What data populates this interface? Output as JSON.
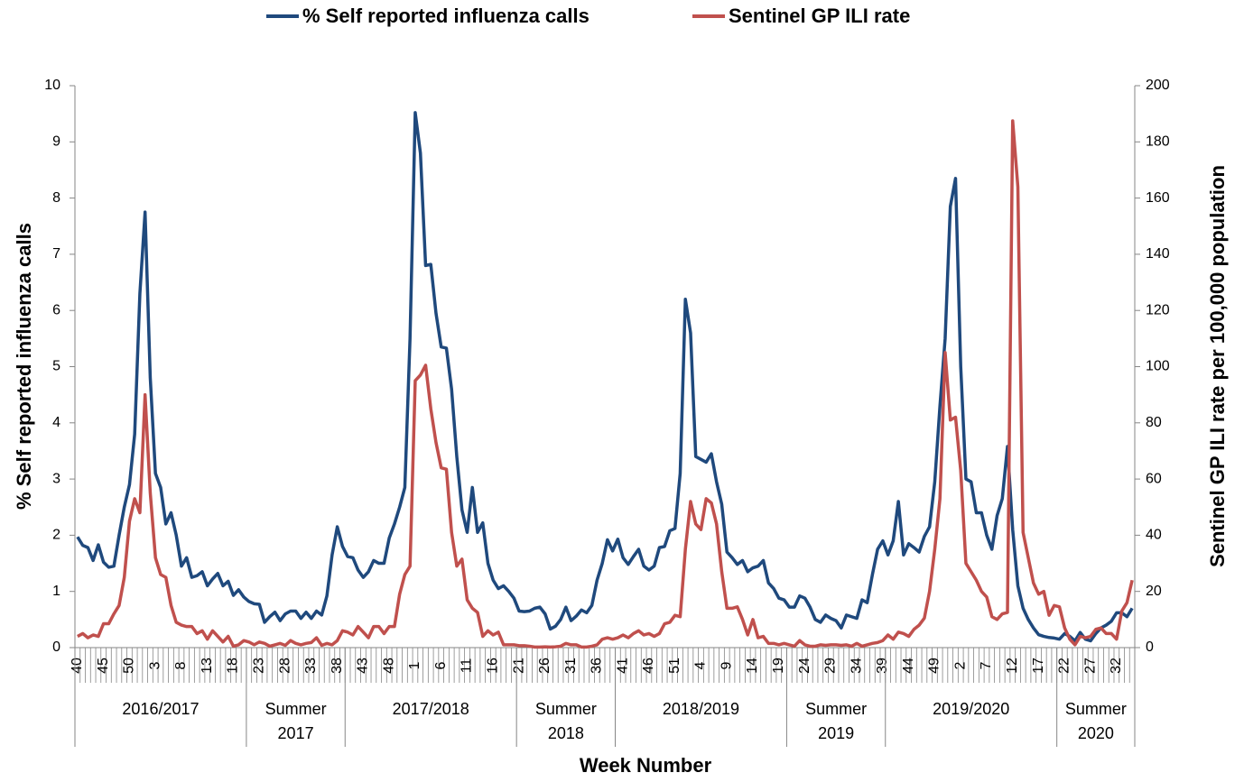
{
  "chart_data": {
    "type": "line",
    "x_label": "Week Number",
    "y_label": "% Self reported influenza calls",
    "y2_label": "Sentinel GP ILI rate per 100,000 population",
    "legend": "top",
    "categories": [
      "40",
      null,
      null,
      null,
      null,
      "45",
      null,
      null,
      null,
      null,
      "50",
      null,
      null,
      null,
      null,
      "3",
      null,
      null,
      null,
      null,
      "8",
      null,
      null,
      null,
      null,
      "13",
      null,
      null,
      null,
      null,
      "18",
      null,
      null,
      null,
      null,
      "23",
      null,
      null,
      null,
      null,
      "28",
      null,
      null,
      null,
      null,
      "33",
      null,
      null,
      null,
      null,
      "38",
      null,
      null,
      null,
      null,
      "43",
      null,
      null,
      null,
      null,
      "48",
      null,
      null,
      null,
      null,
      "1",
      null,
      null,
      null,
      null,
      "6",
      null,
      null,
      null,
      null,
      "11",
      null,
      null,
      null,
      null,
      "16",
      null,
      null,
      null,
      null,
      "21",
      null,
      null,
      null,
      null,
      "26",
      null,
      null,
      null,
      null,
      "31",
      null,
      null,
      null,
      null,
      "36",
      null,
      null,
      null,
      null,
      "41",
      null,
      null,
      null,
      null,
      "46",
      null,
      null,
      null,
      null,
      "51",
      null,
      null,
      null,
      null,
      "4",
      null,
      null,
      null,
      null,
      "9",
      null,
      null,
      null,
      null,
      "14",
      null,
      null,
      null,
      null,
      "19",
      null,
      null,
      null,
      null,
      "24",
      null,
      null,
      null,
      null,
      "29",
      null,
      null,
      null,
      null,
      "34",
      null,
      null,
      null,
      null,
      "39",
      null,
      null,
      null,
      null,
      "44",
      null,
      null,
      null,
      null,
      "49",
      null,
      null,
      null,
      null,
      "2",
      null,
      null,
      null,
      null,
      "7",
      null,
      null,
      null,
      null,
      "12",
      null,
      null,
      null,
      null,
      "17",
      null,
      null,
      null,
      null,
      "22",
      null,
      null,
      null,
      null,
      "27",
      null,
      null,
      null,
      null,
      "32",
      null,
      null,
      null
    ],
    "groups": [
      [
        "2016/2017"
      ],
      [
        "Summer",
        "2017"
      ],
      [
        "2017/2018"
      ],
      [
        "Summer",
        "2018"
      ],
      [
        "2018/2019"
      ],
      [
        "Summer",
        "2019"
      ],
      [
        "2019/2020"
      ],
      [
        "Summer",
        "2020"
      ]
    ],
    "series": [
      {
        "name": "% Self reported influenza calls",
        "color": "#1f497d",
        "axis": "y",
        "values": [
          1.97,
          1.82,
          1.78,
          1.55,
          1.83,
          1.52,
          1.43,
          1.45,
          2.0,
          2.5,
          2.9,
          3.8,
          6.3,
          7.75,
          4.8,
          3.1,
          2.85,
          2.2,
          2.4,
          2.0,
          1.45,
          1.6,
          1.25,
          1.28,
          1.35,
          1.1,
          1.22,
          1.32,
          1.1,
          1.18,
          0.93,
          1.03,
          0.9,
          0.82,
          0.78,
          0.77,
          0.45,
          0.55,
          0.63,
          0.48,
          0.6,
          0.65,
          0.65,
          0.52,
          0.63,
          0.52,
          0.65,
          0.58,
          0.92,
          1.65,
          2.15,
          1.8,
          1.62,
          1.6,
          1.38,
          1.25,
          1.35,
          1.55,
          1.5,
          1.5,
          1.95,
          2.2,
          2.5,
          2.85,
          5.5,
          9.52,
          8.8,
          6.8,
          6.82,
          5.95,
          5.35,
          5.33,
          4.6,
          3.4,
          2.45,
          2.05,
          2.85,
          2.05,
          2.22,
          1.5,
          1.2,
          1.05,
          1.1,
          1.0,
          0.88,
          0.65,
          0.64,
          0.65,
          0.7,
          0.72,
          0.6,
          0.33,
          0.38,
          0.5,
          0.72,
          0.48,
          0.56,
          0.67,
          0.62,
          0.75,
          1.2,
          1.5,
          1.92,
          1.72,
          1.93,
          1.6,
          1.48,
          1.62,
          1.75,
          1.45,
          1.38,
          1.45,
          1.78,
          1.8,
          2.08,
          2.12,
          3.1,
          6.2,
          5.6,
          3.4,
          3.35,
          3.3,
          3.45,
          2.95,
          2.55,
          1.7,
          1.6,
          1.48,
          1.55,
          1.35,
          1.42,
          1.45,
          1.55,
          1.15,
          1.05,
          0.88,
          0.85,
          0.72,
          0.72,
          0.92,
          0.88,
          0.72,
          0.5,
          0.45,
          0.58,
          0.52,
          0.48,
          0.35,
          0.58,
          0.55,
          0.52,
          0.85,
          0.8,
          1.3,
          1.75,
          1.9,
          1.65,
          1.9,
          2.6,
          1.65,
          1.85,
          1.78,
          1.7,
          1.98,
          2.15,
          2.95,
          4.3,
          5.5,
          7.85,
          8.35,
          5.0,
          3.0,
          2.95,
          2.4,
          2.4,
          2.0,
          1.75,
          2.35,
          2.65,
          3.58,
          2.1,
          1.1,
          0.7,
          0.5,
          0.35,
          0.23,
          0.2,
          0.18,
          0.17,
          0.15,
          0.25,
          0.2,
          0.12,
          0.27,
          0.15,
          0.12,
          0.25,
          0.35,
          0.4,
          0.47,
          0.62,
          0.62,
          0.55,
          0.7
        ]
      },
      {
        "name": "Sentinel GP ILI rate",
        "color": "#c0504d",
        "axis": "y2",
        "values": [
          4,
          5,
          3.5,
          4.5,
          4,
          8.5,
          8.5,
          12,
          15,
          25,
          45,
          53,
          48,
          90,
          55,
          32,
          26,
          25,
          15,
          9,
          8,
          7.5,
          7.5,
          5,
          6,
          3,
          6,
          4,
          2,
          4,
          0.5,
          1,
          2.5,
          2,
          1,
          2,
          1.5,
          0.5,
          1,
          1.5,
          0.8,
          2.5,
          1.5,
          1,
          1.5,
          1.8,
          3.5,
          0.8,
          1.5,
          1,
          2.5,
          6,
          5.5,
          4.5,
          7.5,
          5.5,
          3.5,
          7.5,
          7.5,
          5,
          7.5,
          7.5,
          19,
          26,
          29,
          95,
          97,
          100.5,
          85,
          73,
          64,
          63.5,
          41,
          29,
          31.5,
          17,
          14,
          12.5,
          4,
          6,
          4.5,
          5.5,
          1,
          1,
          1,
          0.7,
          0.7,
          0.5,
          0.2,
          0.2,
          0.3,
          0.2,
          0.3,
          0.5,
          1.5,
          1,
          1,
          0.2,
          0.2,
          0.5,
          1,
          3,
          3.5,
          3,
          3.5,
          4.5,
          3.5,
          5,
          6,
          4.5,
          5,
          4,
          5,
          8.5,
          9,
          11.5,
          11,
          35,
          52,
          44,
          42,
          53,
          51.5,
          44,
          27,
          14,
          14,
          14.5,
          10,
          4.5,
          10,
          3.5,
          4,
          1.5,
          1.5,
          1,
          1.5,
          1,
          0.5,
          2.5,
          1,
          0.5,
          0.5,
          1,
          0.8,
          1,
          1,
          0.8,
          1,
          0.5,
          1.5,
          0.5,
          1,
          1.5,
          1.8,
          2.5,
          4.5,
          3,
          5.5,
          5,
          4,
          6.5,
          8,
          10.5,
          20,
          35,
          53,
          105,
          81,
          82,
          63,
          30,
          27,
          24,
          20,
          18,
          11,
          10,
          12,
          12.5,
          187.5,
          164,
          41,
          32,
          23,
          19,
          20,
          11.5,
          15,
          14.5,
          7,
          3,
          1,
          4,
          3.5,
          4,
          6.5,
          7,
          5,
          5,
          3,
          13,
          16,
          24
        ]
      }
    ],
    "ylim": [
      0,
      10
    ],
    "yticks": [
      0,
      1,
      2,
      3,
      4,
      5,
      6,
      7,
      8,
      9,
      10
    ],
    "y2lim": [
      0,
      200
    ],
    "y2ticks": [
      0,
      20,
      40,
      60,
      80,
      100,
      120,
      140,
      160,
      180,
      200
    ],
    "grid": false
  }
}
